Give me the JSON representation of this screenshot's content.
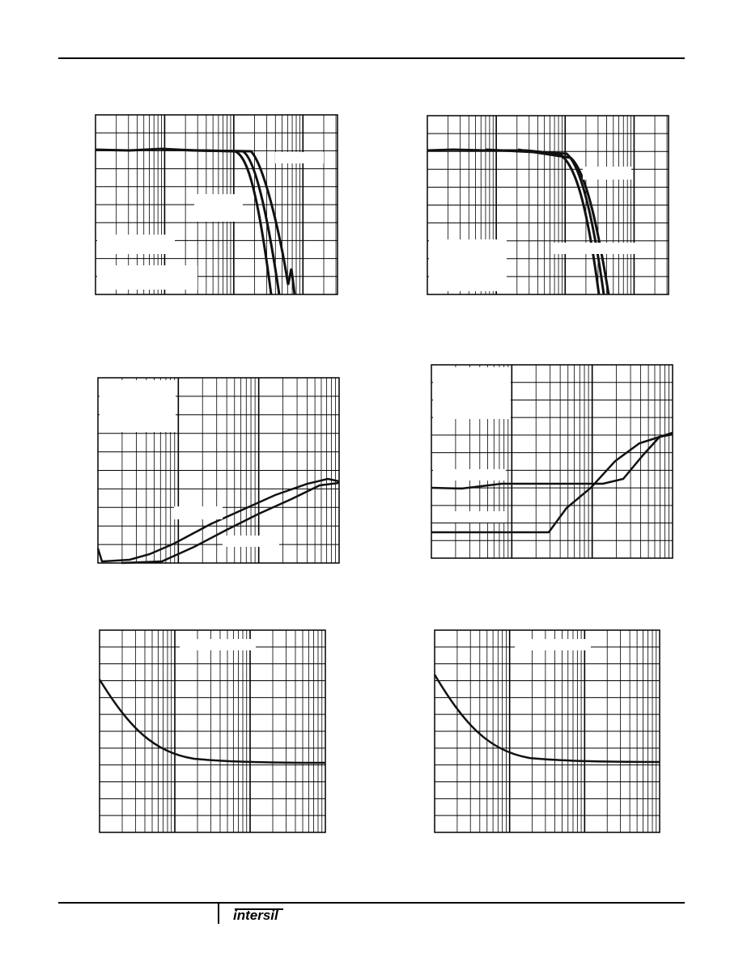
{
  "footer": {
    "logo": "intersil"
  }
}
